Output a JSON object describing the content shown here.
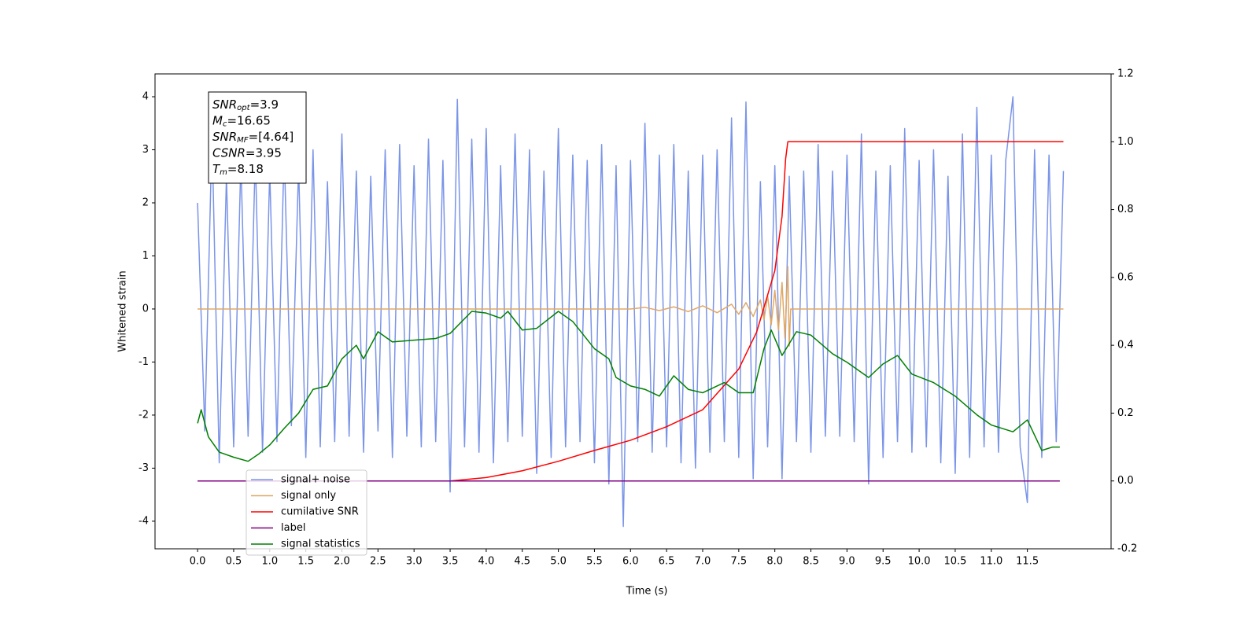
{
  "chart_data": {
    "type": "line",
    "xlabel": "Time (s)",
    "ylabel": "Whitened strain",
    "xlim": [
      -0.59,
      12.66
    ],
    "xticks": [
      {
        "value": 0,
        "label": "0.0"
      },
      0.5,
      {
        "value": 1,
        "label": "1.0"
      },
      1.5,
      {
        "value": 2,
        "label": "2.0"
      },
      2.5,
      {
        "value": 3,
        "label": "3.0"
      },
      3.5,
      {
        "value": 4,
        "label": "4.0"
      },
      4.5,
      {
        "value": 5,
        "label": "5.0"
      },
      5.5,
      {
        "value": 6,
        "label": "6.0"
      },
      6.5,
      {
        "value": 7,
        "label": "7.0"
      },
      7.5,
      {
        "value": 8,
        "label": "8.0"
      },
      8.5,
      {
        "value": 9,
        "label": "9.0"
      },
      9.5,
      {
        "value": 10,
        "label": "10.0"
      },
      10.5,
      {
        "value": 11,
        "label": "11.0"
      },
      11.5
    ],
    "ylim": [
      -4.52,
      4.43
    ],
    "yticks": [
      -4,
      -3,
      -2,
      -1,
      0,
      1,
      2,
      3,
      4
    ],
    "y2lim": [
      -0.2,
      1.2
    ],
    "y2ticks": [
      -0.2,
      {
        "value": 0,
        "label": "0.0"
      },
      0.2,
      0.4,
      0.6,
      0.8,
      {
        "value": 1,
        "label": "1.0"
      },
      1.2
    ],
    "legend": "lower left",
    "annotation": [
      {
        "main": "SNR",
        "sub": "opt",
        "rest": "=3.9"
      },
      {
        "main": "M",
        "sub": "c",
        "rest": "=16.65"
      },
      {
        "main": "SNR",
        "sub": "MF",
        "rest": "=[4.64]"
      },
      {
        "main": "CSNR",
        "rest": "=3.95"
      },
      {
        "main": "T",
        "sub": "m",
        "rest": "=8.18"
      }
    ],
    "series": [
      {
        "name": "signal+ noise",
        "color": "#7a94e8",
        "axis": "y",
        "x": [
          0,
          0.1,
          0.2,
          0.3,
          0.4,
          0.5,
          0.6,
          0.7,
          0.8,
          0.9,
          1,
          1.1,
          1.2,
          1.3,
          1.4,
          1.5,
          1.6,
          1.7,
          1.8,
          1.9,
          2,
          2.1,
          2.2,
          2.3,
          2.4,
          2.5,
          2.6,
          2.7,
          2.8,
          2.9,
          3,
          3.1,
          3.2,
          3.3,
          3.4,
          3.5,
          3.6,
          3.7,
          3.8,
          3.9,
          4,
          4.1,
          4.2,
          4.3,
          4.4,
          4.5,
          4.6,
          4.7,
          4.8,
          4.9,
          5,
          5.1,
          5.2,
          5.3,
          5.4,
          5.5,
          5.6,
          5.7,
          5.8,
          5.9,
          6,
          6.1,
          6.2,
          6.3,
          6.4,
          6.5,
          6.6,
          6.7,
          6.8,
          6.9,
          7,
          7.1,
          7.2,
          7.3,
          7.4,
          7.5,
          7.6,
          7.7,
          7.8,
          7.9,
          8,
          8.1,
          8.2,
          8.3,
          8.4,
          8.5,
          8.6,
          8.7,
          8.8,
          8.9,
          9,
          9.1,
          9.2,
          9.3,
          9.4,
          9.5,
          9.6,
          9.7,
          9.8,
          9.9,
          10,
          10.1,
          10.2,
          10.3,
          10.4,
          10.5,
          10.6,
          10.7,
          10.8,
          10.9,
          11,
          11.1,
          11.2,
          11.3,
          11.4,
          11.5,
          11.6,
          11.7,
          11.8,
          11.9,
          12
        ],
        "values": [
          2.0,
          -2.3,
          3.3,
          -2.9,
          2.5,
          -2.6,
          2.8,
          -2.4,
          2.9,
          -2.7,
          2.6,
          -2.5,
          3.0,
          -2.2,
          2.7,
          -2.8,
          3.0,
          -2.6,
          2.4,
          -2.5,
          3.3,
          -2.4,
          2.6,
          -2.7,
          2.5,
          -2.3,
          3.0,
          -2.8,
          3.1,
          -2.4,
          2.7,
          -2.6,
          3.2,
          -2.5,
          2.8,
          -3.45,
          3.95,
          -2.6,
          3.2,
          -2.7,
          3.4,
          -2.9,
          2.7,
          -2.5,
          3.3,
          -2.4,
          3.0,
          -3.1,
          2.6,
          -2.8,
          3.4,
          -2.6,
          2.9,
          -2.5,
          2.8,
          -2.9,
          3.1,
          -3.3,
          2.7,
          -4.1,
          2.8,
          -2.5,
          3.5,
          -2.7,
          2.9,
          -2.6,
          3.1,
          -2.9,
          2.6,
          -3.0,
          2.9,
          -2.7,
          3.0,
          -2.5,
          3.6,
          -2.8,
          3.9,
          -3.2,
          2.4,
          -2.6,
          2.7,
          -3.2,
          2.5,
          -2.5,
          2.6,
          -2.7,
          3.1,
          -2.4,
          2.6,
          -2.4,
          2.9,
          -2.5,
          3.3,
          -3.3,
          2.6,
          -2.8,
          2.7,
          -2.5,
          3.4,
          -2.7,
          2.8,
          -2.6,
          3.0,
          -2.9,
          2.5,
          -3.1,
          3.3,
          -2.8,
          3.8,
          -2.6,
          2.9,
          -2.7,
          2.8,
          4.0,
          -2.6,
          -3.65,
          3.0,
          -2.8,
          2.9,
          -2.5,
          2.6
        ]
      },
      {
        "name": "signal only",
        "color": "#e0a866",
        "axis": "y",
        "x": [
          0,
          6.0,
          6.2,
          6.4,
          6.6,
          6.8,
          7.0,
          7.2,
          7.4,
          7.5,
          7.6,
          7.7,
          7.8,
          7.85,
          7.9,
          7.95,
          8.0,
          8.05,
          8.1,
          8.14,
          8.18,
          8.2,
          8.22,
          12.0
        ],
        "values": [
          0,
          0,
          0.03,
          -0.03,
          0.04,
          -0.05,
          0.06,
          -0.07,
          0.09,
          -0.1,
          0.12,
          -0.14,
          0.17,
          -0.2,
          0.25,
          -0.3,
          0.35,
          -0.4,
          0.5,
          -0.55,
          0.8,
          -0.7,
          0,
          0
        ]
      },
      {
        "name": "cumilative SNR",
        "color": "#ff0000",
        "axis": "y2",
        "x": [
          0,
          3.5,
          4.0,
          4.5,
          5.0,
          5.5,
          6.0,
          6.5,
          7.0,
          7.5,
          7.75,
          8.0,
          8.1,
          8.15,
          8.18,
          12.0
        ],
        "values": [
          0,
          0,
          0.01,
          0.03,
          0.058,
          0.09,
          0.12,
          0.16,
          0.21,
          0.33,
          0.44,
          0.62,
          0.78,
          0.95,
          1.0,
          1.0
        ]
      },
      {
        "name": "label",
        "color": "#800080",
        "axis": "y2",
        "x": [
          0,
          11.95
        ],
        "values": [
          0,
          0
        ]
      },
      {
        "name": "signal statistics",
        "color": "#008000",
        "axis": "y2",
        "x": [
          0,
          0.05,
          0.15,
          0.3,
          0.5,
          0.7,
          0.85,
          1.0,
          1.2,
          1.4,
          1.6,
          1.8,
          2.0,
          2.2,
          2.3,
          2.5,
          2.7,
          3.0,
          3.3,
          3.5,
          3.8,
          4.0,
          4.2,
          4.3,
          4.5,
          4.7,
          5.0,
          5.2,
          5.5,
          5.7,
          5.8,
          6.0,
          6.2,
          6.4,
          6.6,
          6.8,
          7.0,
          7.3,
          7.5,
          7.7,
          7.85,
          7.95,
          8.1,
          8.3,
          8.5,
          8.8,
          9.0,
          9.3,
          9.5,
          9.7,
          9.9,
          10.2,
          10.5,
          10.8,
          11.0,
          11.3,
          11.5,
          11.7,
          11.85,
          11.95
        ],
        "values": [
          0.17,
          0.21,
          0.13,
          0.085,
          0.07,
          0.058,
          0.08,
          0.106,
          0.155,
          0.2,
          0.27,
          0.28,
          0.36,
          0.4,
          0.36,
          0.44,
          0.41,
          0.415,
          0.42,
          0.435,
          0.5,
          0.495,
          0.48,
          0.5,
          0.445,
          0.45,
          0.5,
          0.47,
          0.39,
          0.36,
          0.305,
          0.28,
          0.27,
          0.25,
          0.31,
          0.27,
          0.26,
          0.29,
          0.26,
          0.26,
          0.39,
          0.445,
          0.37,
          0.44,
          0.43,
          0.375,
          0.35,
          0.305,
          0.345,
          0.37,
          0.315,
          0.29,
          0.25,
          0.195,
          0.165,
          0.145,
          0.18,
          0.09,
          0.1,
          0.1
        ]
      }
    ]
  }
}
